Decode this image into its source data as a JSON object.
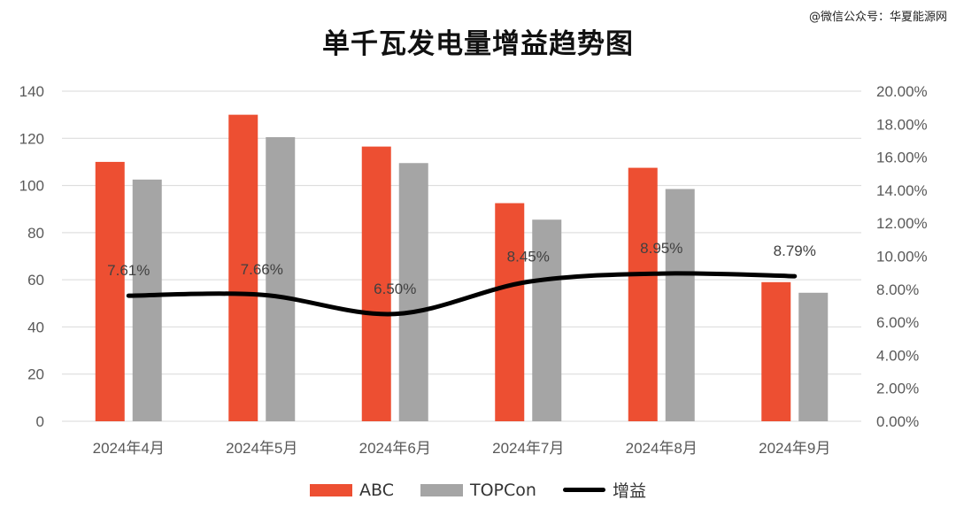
{
  "watermark": "@微信公众号：华夏能源网",
  "colors": {
    "abc": "#ED4F32",
    "topcon": "#A5A5A5",
    "gain": "#000000",
    "grid": "#D9D9D9",
    "text": "#595959"
  },
  "chart_data": {
    "type": "bar",
    "title": "单千瓦发电量增益趋势图",
    "categories": [
      "2024年4月",
      "2024年5月",
      "2024年6月",
      "2024年7月",
      "2024年8月",
      "2024年9月"
    ],
    "series": [
      {
        "name": "ABC",
        "type": "bar",
        "axis": "left",
        "values": [
          110,
          130,
          116.5,
          92.5,
          107.5,
          59
        ]
      },
      {
        "name": "TOPCon",
        "type": "bar",
        "axis": "right_none",
        "values": [
          102.5,
          120.5,
          109.5,
          85.5,
          98.5,
          54.5
        ]
      },
      {
        "name": "增益",
        "type": "line",
        "axis": "right",
        "values": [
          7.61,
          7.66,
          6.5,
          8.45,
          8.95,
          8.79
        ],
        "labels": [
          "7.61%",
          "7.66%",
          "6.50%",
          "8.45%",
          "8.95%",
          "8.79%"
        ]
      }
    ],
    "y_left": {
      "range": [
        0,
        140
      ],
      "ticks": [
        "0",
        "20",
        "40",
        "60",
        "80",
        "100",
        "120",
        "140"
      ]
    },
    "y_right": {
      "range": [
        0,
        20
      ],
      "ticks": [
        "0.00%",
        "2.00%",
        "4.00%",
        "6.00%",
        "8.00%",
        "10.00%",
        "12.00%",
        "14.00%",
        "16.00%",
        "18.00%",
        "20.00%"
      ]
    },
    "grid": true,
    "legend_position": "bottom"
  }
}
